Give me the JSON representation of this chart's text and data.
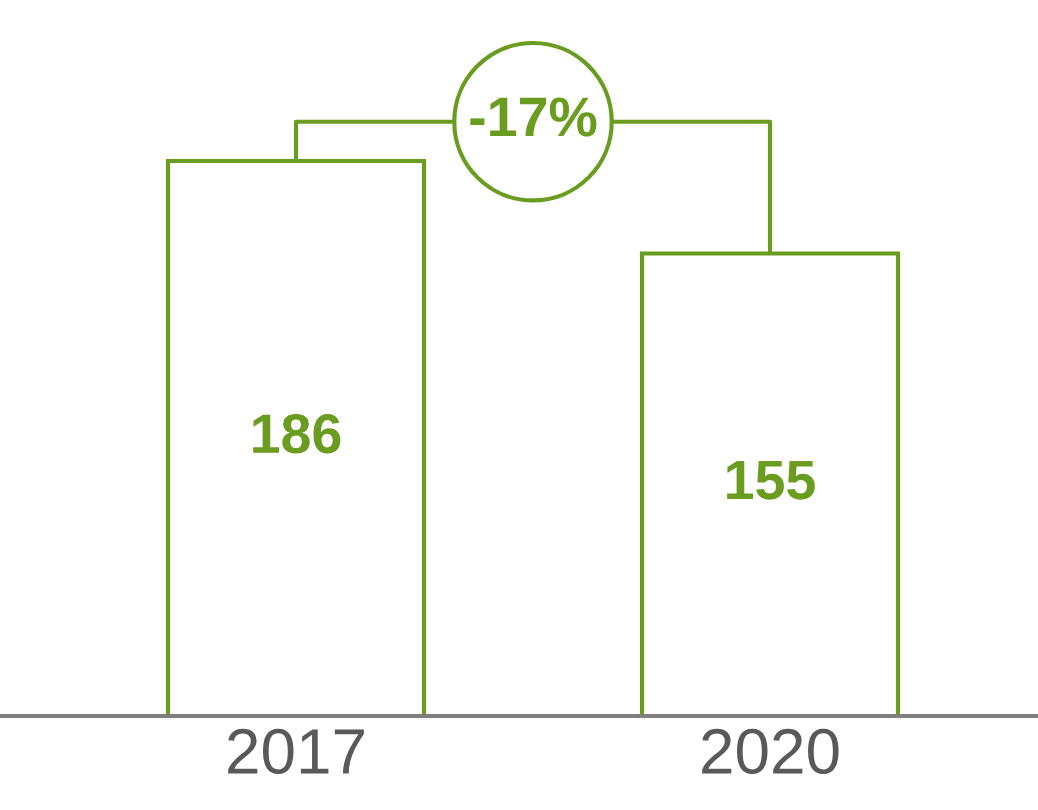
{
  "chart_data": {
    "type": "bar",
    "categories": [
      "2017",
      "2020"
    ],
    "values": [
      186,
      155
    ],
    "color": "#6a9c1f",
    "data_labels": true,
    "annotations": [
      "-17%"
    ],
    "grid": false,
    "legend": false,
    "tick_labels": "x"
  }
}
